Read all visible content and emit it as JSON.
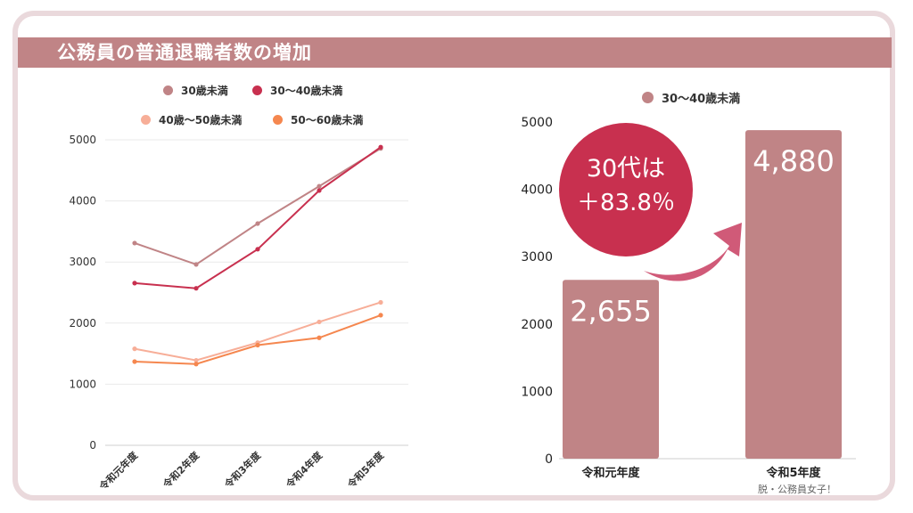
{
  "page": {
    "title": "公務員の普通退職者数の増加",
    "credit": "脱・公務員女子！"
  },
  "colors": {
    "banner": "#c08486",
    "frame": "#ead9dc",
    "under30": "#c08486",
    "age30_40": "#c8304f",
    "age40_50": "#f7ae98",
    "age50_60": "#f5874f",
    "bubble": "#c8304f",
    "bar": "#c08486"
  },
  "chart_data": [
    {
      "type": "line",
      "categories": [
        "令和元年度",
        "令和2年度",
        "令和3年度",
        "令和4年度",
        "令和5年度"
      ],
      "ylim": [
        0,
        5000
      ],
      "yticks": [
        0,
        1000,
        2000,
        3000,
        4000,
        5000
      ],
      "grid": true,
      "legend_position": "top",
      "series": [
        {
          "name": "30歳未満",
          "values": [
            3310,
            2960,
            3630,
            4240,
            4860
          ]
        },
        {
          "name": "30～40歳未満",
          "values": [
            2655,
            2570,
            3210,
            4170,
            4880
          ]
        },
        {
          "name": "40歳～50歳未満",
          "values": [
            1580,
            1390,
            1680,
            2020,
            2340
          ]
        },
        {
          "name": "50～60歳未満",
          "values": [
            1370,
            1330,
            1640,
            1760,
            2130
          ]
        }
      ]
    },
    {
      "type": "bar",
      "categories": [
        "令和元年度",
        "令和5年度"
      ],
      "ylim": [
        0,
        5000
      ],
      "yticks": [
        0,
        1000,
        2000,
        3000,
        4000,
        5000
      ],
      "grid": false,
      "legend_position": "top",
      "series": [
        {
          "name": "30～40歳未満",
          "values": [
            2655,
            4880
          ]
        }
      ],
      "data_labels": [
        "2,655",
        "4,880"
      ],
      "annotation": {
        "line1": "30代は",
        "line2": "＋83.8％"
      }
    }
  ]
}
